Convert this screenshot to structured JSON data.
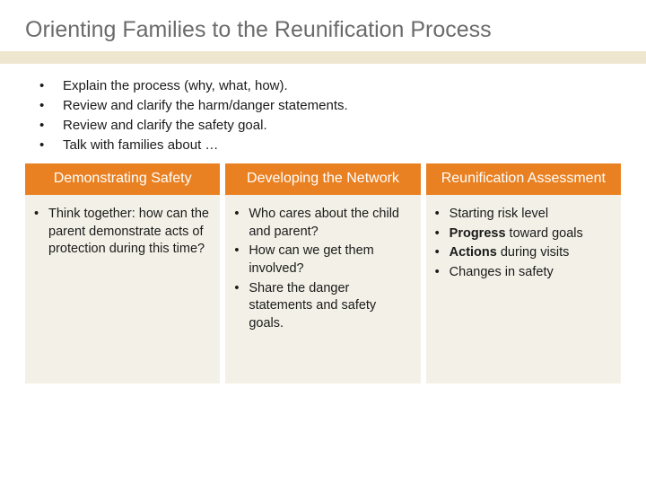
{
  "colors": {
    "title_text": "#6b6b6b",
    "underline_band": "#eee6cf",
    "header_bg": "#e98122",
    "header_text": "#ffffff",
    "body_bg": "#f3f1e7",
    "body_text": "#1a1a1a",
    "page_bg": "#ffffff"
  },
  "title": "Orienting Families to the Reunification Process",
  "intro": {
    "items": [
      "Explain the process (why, what, how).",
      "Review and clarify the harm/danger statements.",
      "Review and clarify the safety goal.",
      "Talk with families about …"
    ]
  },
  "columns": [
    {
      "header": "Demonstrating Safety",
      "body_html": "<li>Think together: how can the parent demonstrate acts of protection during this time?</li>"
    },
    {
      "header": "Developing the Network",
      "body_html": "<li>Who cares about the child and parent?</li><li>How can we get them involved?</li><li>Share the danger statements and safety goals.</li>"
    },
    {
      "header": "Reunification Assessment",
      "body_html": "<li>Starting risk level</li><li><span class=\"bold\">Progress</span> toward goals</li><li><span class=\"bold\">Actions</span> during visits</li><li>Changes in safety</li>"
    }
  ]
}
